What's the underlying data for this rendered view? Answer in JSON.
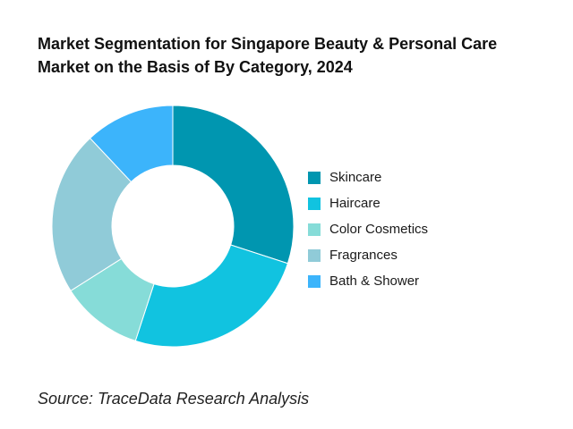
{
  "header": {
    "title_line1": "Market Segmentation for Singapore Beauty & Personal Care",
    "title_line2": "Market on the Basis of By Category, 2024"
  },
  "chart_data": {
    "type": "pie",
    "variant": "donut",
    "title": "Market Segmentation for Singapore Beauty & Personal Care Market on the Basis of By Category, 2024",
    "categories": [
      "Skincare",
      "Haircare",
      "Color Cosmetics",
      "Fragrances",
      "Bath & Shower"
    ],
    "values": [
      30,
      25,
      11,
      22,
      12
    ],
    "colors": [
      "#0096b0",
      "#11c3e0",
      "#86dcd8",
      "#90cbd8",
      "#3cb4fb"
    ],
    "legend_position": "right"
  },
  "footer": {
    "source": "Source: TraceData Research Analysis"
  }
}
